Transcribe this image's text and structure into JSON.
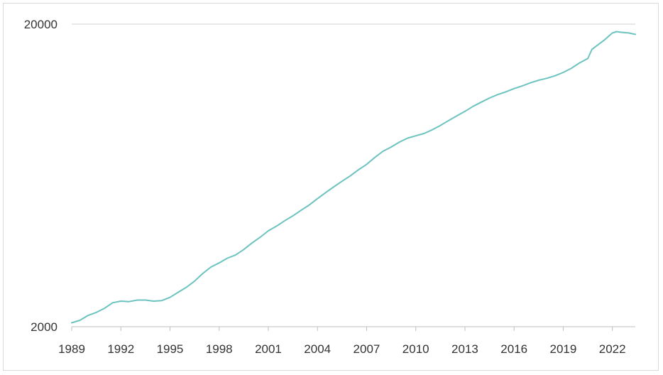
{
  "chart_data": {
    "type": "line",
    "title": "",
    "xlabel": "",
    "ylabel": "",
    "yscale": "log",
    "ylim": [
      2000,
      20000
    ],
    "xlim": [
      1989.0,
      2023.4
    ],
    "y_ticks": [
      {
        "value": 2000,
        "label": "2000"
      },
      {
        "value": 20000,
        "label": "20000"
      }
    ],
    "x_ticks": [
      {
        "value": 1989,
        "label": "1989"
      },
      {
        "value": 1992,
        "label": "1992"
      },
      {
        "value": 1995,
        "label": "1995"
      },
      {
        "value": 1998,
        "label": "1998"
      },
      {
        "value": 2001,
        "label": "2001"
      },
      {
        "value": 2004,
        "label": "2004"
      },
      {
        "value": 2007,
        "label": "2007"
      },
      {
        "value": 2010,
        "label": "2010"
      },
      {
        "value": 2013,
        "label": "2013"
      },
      {
        "value": 2016,
        "label": "2016"
      },
      {
        "value": 2019,
        "label": "2019"
      },
      {
        "value": 2022,
        "label": "2022"
      }
    ],
    "grid": "horizontal at y ticks",
    "legend": "none",
    "colors": {
      "series": "#6cc3bf",
      "grid": "#d0d0d0",
      "axis": "#bfbfbf",
      "text": "#333333"
    },
    "series": [
      {
        "x": [
          1989.0,
          1989.5,
          1990.0,
          1990.5,
          1991.0,
          1991.5,
          1992.0,
          1992.5,
          1993.0,
          1993.5,
          1994.0,
          1994.5,
          1995.0,
          1995.5,
          1996.0,
          1996.5,
          1997.0,
          1997.5,
          1998.0,
          1998.5,
          1999.0,
          1999.5,
          2000.0,
          2000.5,
          2001.0,
          2001.5,
          2002.0,
          2002.5,
          2003.0,
          2003.5,
          2004.0,
          2004.5,
          2005.0,
          2005.5,
          2006.0,
          2006.5,
          2007.0,
          2007.5,
          2008.0,
          2008.5,
          2009.0,
          2009.5,
          2010.0,
          2010.5,
          2011.0,
          2011.5,
          2012.0,
          2012.5,
          2013.0,
          2013.5,
          2014.0,
          2014.5,
          2015.0,
          2015.5,
          2016.0,
          2016.5,
          2017.0,
          2017.5,
          2018.0,
          2018.5,
          2019.0,
          2019.5,
          2020.0,
          2020.5,
          2020.75,
          2021.0,
          2021.5,
          2022.0,
          2022.25,
          2022.5,
          2023.0,
          2023.4
        ],
        "values": [
          2060,
          2100,
          2180,
          2230,
          2300,
          2400,
          2430,
          2420,
          2450,
          2450,
          2430,
          2440,
          2500,
          2600,
          2700,
          2830,
          3000,
          3150,
          3250,
          3370,
          3450,
          3600,
          3780,
          3950,
          4150,
          4300,
          4480,
          4650,
          4850,
          5050,
          5300,
          5550,
          5800,
          6050,
          6300,
          6600,
          6880,
          7250,
          7600,
          7850,
          8150,
          8400,
          8550,
          8700,
          8950,
          9250,
          9600,
          9950,
          10300,
          10700,
          11050,
          11400,
          11700,
          11950,
          12250,
          12500,
          12800,
          13050,
          13250,
          13500,
          13850,
          14300,
          14900,
          15400,
          16500,
          16900,
          17700,
          18700,
          18900,
          18800,
          18700,
          18500
        ]
      }
    ]
  }
}
